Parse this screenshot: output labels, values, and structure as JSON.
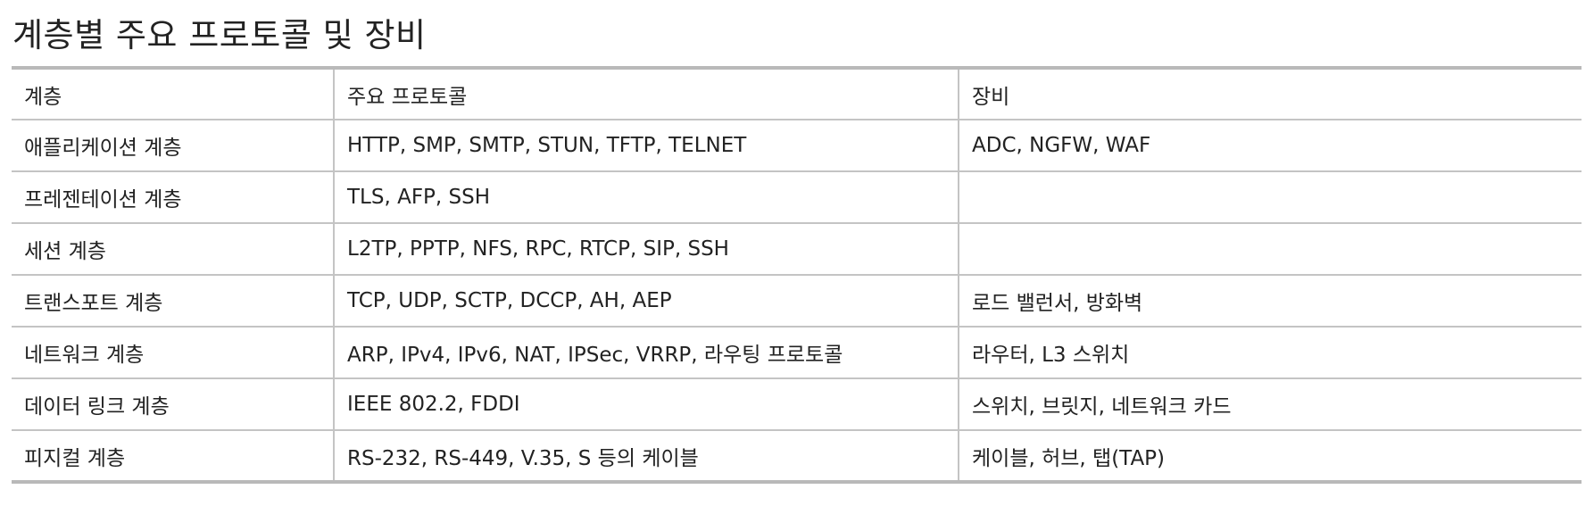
{
  "title": "계층별 주요 프로토콜 및 장비",
  "table": {
    "headers": [
      "계층",
      "주요 프로토콜",
      "장비"
    ],
    "rows": [
      [
        "애플리케이션 계층",
        "HTTP, SMP, SMTP, STUN, TFTP, TELNET",
        "ADC, NGFW, WAF"
      ],
      [
        "프레젠테이션 계층",
        "TLS, AFP, SSH",
        ""
      ],
      [
        "세션 계층",
        "L2TP, PPTP, NFS, RPC, RTCP, SIP, SSH",
        ""
      ],
      [
        "트랜스포트 계층",
        "TCP, UDP, SCTP, DCCP, AH, AEP",
        "로드 밸런서, 방화벽"
      ],
      [
        "네트워크 계층",
        "ARP, IPv4, IPv6, NAT, IPSec, VRRP, 라우팅 프로토콜",
        "라우터, L3 스위치"
      ],
      [
        "데이터 링크 계층",
        "IEEE 802.2, FDDI",
        "스위치, 브릿지, 네트워크 카드"
      ],
      [
        "피지컬 계층",
        "RS-232, RS-449, V.35, S 등의 케이블",
        "케이블, 허브, 탭(TAP)"
      ]
    ]
  }
}
